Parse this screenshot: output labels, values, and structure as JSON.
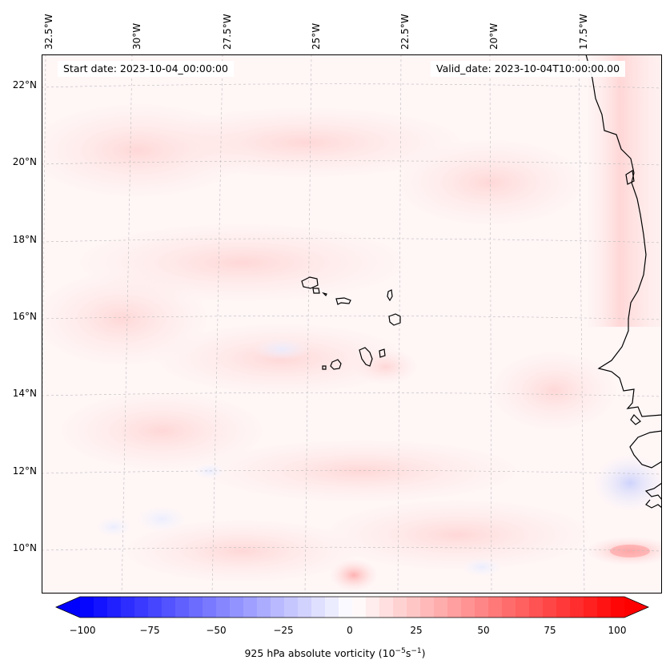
{
  "map": {
    "start_date_text": "Start date: 2023-10-04_00:00:00",
    "valid_date_text": "Valid_date: 2023-10-04T10:00:00.00",
    "lon_labels": [
      "32.5°W",
      "30°W",
      "27.5°W",
      "25°W",
      "22.5°W",
      "20°W",
      "17.5°W"
    ],
    "lat_labels": [
      "22°N",
      "20°N",
      "18°N",
      "16°N",
      "14°N",
      "12°N",
      "10°N"
    ],
    "colors": {
      "coast": "#000000",
      "background": "#fff6f6",
      "grid": "#bbbbbb",
      "neg_max": "#0000ff",
      "pos_max": "#ff0000",
      "neutral": "#ffffff"
    }
  },
  "colorbar": {
    "ticks": [
      "−100",
      "−75",
      "−50",
      "−25",
      "0",
      "25",
      "50",
      "75",
      "100"
    ],
    "label_main": "925 hPa absolute vorticity (10",
    "label_exp1": "−5",
    "label_mid": "s",
    "label_exp2": "−1",
    "label_end": ")",
    "range": [
      -100,
      100
    ],
    "levels": 40
  }
}
